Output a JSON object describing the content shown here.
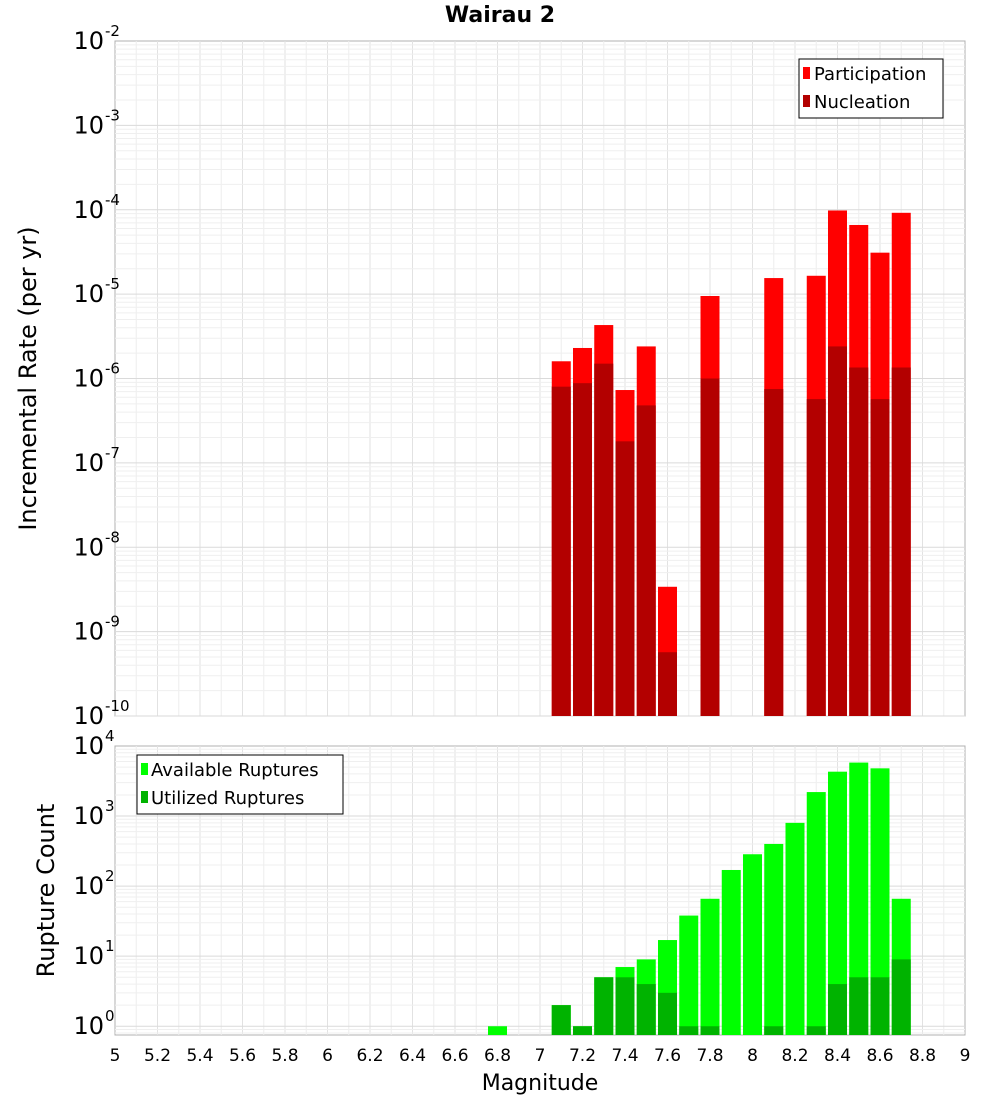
{
  "chart_data": [
    {
      "type": "bar",
      "title": "Wairau 2",
      "xlabel": "",
      "ylabel": "Incremental Rate (per yr)",
      "y_scale": "log",
      "ylim": [
        1e-10,
        0.01
      ],
      "xlim": [
        5,
        9
      ],
      "y_ticks": [
        {
          "base": "10",
          "exp": "-10",
          "value": 1e-10
        },
        {
          "base": "10",
          "exp": "-9",
          "value": 1e-09
        },
        {
          "base": "10",
          "exp": "-8",
          "value": 1e-08
        },
        {
          "base": "10",
          "exp": "-7",
          "value": 1e-07
        },
        {
          "base": "10",
          "exp": "-6",
          "value": 1e-06
        },
        {
          "base": "10",
          "exp": "-5",
          "value": 1e-05
        },
        {
          "base": "10",
          "exp": "-4",
          "value": 0.0001
        },
        {
          "base": "10",
          "exp": "-3",
          "value": 0.001
        },
        {
          "base": "10",
          "exp": "-2",
          "value": 0.01
        }
      ],
      "grid": true,
      "legend_position": "top-right",
      "colors": {
        "participation": "#ff0000",
        "nucleation": "#b30000"
      },
      "series": [
        {
          "name": "Participation",
          "x": [
            7.1,
            7.2,
            7.3,
            7.4,
            7.5,
            7.6,
            7.8,
            8.1,
            8.3,
            8.4,
            8.5,
            8.6,
            8.7
          ],
          "values": [
            1.6e-06,
            2.3e-06,
            4.3e-06,
            7.3e-07,
            2.4e-06,
            3.4e-09,
            9.5e-06,
            1.55e-05,
            1.65e-05,
            9.8e-05,
            6.6e-05,
            3.1e-05,
            9.2e-05
          ]
        },
        {
          "name": "Nucleation",
          "x": [
            7.1,
            7.2,
            7.3,
            7.4,
            7.5,
            7.6,
            7.8,
            8.1,
            8.3,
            8.4,
            8.5,
            8.6,
            8.7
          ],
          "values": [
            8e-07,
            8.8e-07,
            1.5e-06,
            1.8e-07,
            4.8e-07,
            5.7e-10,
            1e-06,
            7.5e-07,
            5.7e-07,
            2.4e-06,
            1.35e-06,
            5.7e-07,
            1.35e-06
          ]
        }
      ]
    },
    {
      "type": "bar",
      "title": "",
      "xlabel": "Magnitude",
      "ylabel": "Rupture Count",
      "y_scale": "log",
      "ylim": [
        0.75,
        10000
      ],
      "xlim": [
        5,
        9
      ],
      "y_ticks": [
        {
          "base": "10",
          "exp": "0",
          "value": 1
        },
        {
          "base": "10",
          "exp": "1",
          "value": 10
        },
        {
          "base": "10",
          "exp": "2",
          "value": 100
        },
        {
          "base": "10",
          "exp": "3",
          "value": 1000
        },
        {
          "base": "10",
          "exp": "4",
          "value": 10000
        }
      ],
      "x_ticks": [
        "5",
        "5.2",
        "5.4",
        "5.6",
        "5.8",
        "6",
        "6.2",
        "6.4",
        "6.6",
        "6.8",
        "7",
        "7.2",
        "7.4",
        "7.6",
        "7.8",
        "8",
        "8.2",
        "8.4",
        "8.6",
        "8.8",
        "9"
      ],
      "grid": true,
      "legend_position": "top-left",
      "colors": {
        "available": "#00ff00",
        "utilized": "#00b300"
      },
      "series": [
        {
          "name": "Available Ruptures",
          "x": [
            6.8,
            7.1,
            7.2,
            7.3,
            7.4,
            7.5,
            7.6,
            7.7,
            7.8,
            7.9,
            8.0,
            8.1,
            8.2,
            8.3,
            8.4,
            8.5,
            8.6,
            8.7
          ],
          "values": [
            1,
            2,
            1,
            5,
            7,
            9,
            17,
            38,
            66,
            170,
            285,
            400,
            800,
            2200,
            4300,
            5800,
            4800,
            66
          ]
        },
        {
          "name": "Utilized Ruptures",
          "x": [
            7.1,
            7.2,
            7.3,
            7.4,
            7.5,
            7.6,
            7.7,
            7.8,
            8.1,
            8.3,
            8.4,
            8.5,
            8.6,
            8.7
          ],
          "values": [
            2,
            1,
            5,
            5,
            4,
            3,
            1,
            1,
            1,
            1,
            4,
            5,
            5,
            9
          ]
        }
      ]
    }
  ]
}
